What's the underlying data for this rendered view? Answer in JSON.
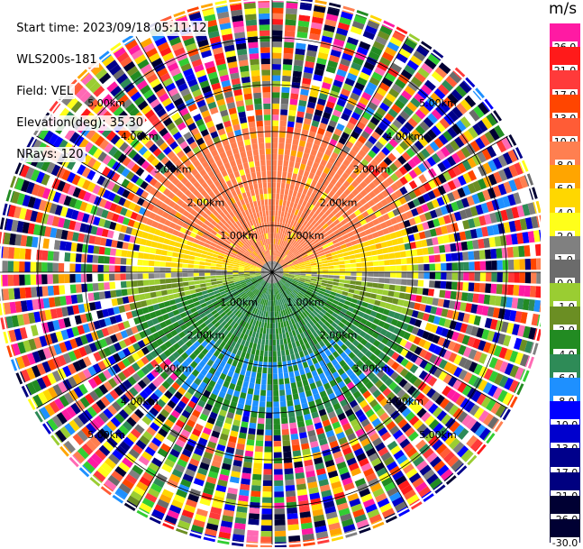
{
  "header": {
    "start_time": "Start time: 2023/09/18 05:11:12",
    "instrument": "WLS200s-181",
    "field": "Field: VEL",
    "elevation": "Elevation(deg): 35.30",
    "nrays": "NRays: 120"
  },
  "colorbar": {
    "unit": "m/s",
    "levels": [
      {
        "label": "26.0",
        "color": "#ff1aa3"
      },
      {
        "label": "21.0",
        "color": "#ff1a1a"
      },
      {
        "label": "17.0",
        "color": "#ff3a3a"
      },
      {
        "label": "13.0",
        "color": "#ff4500"
      },
      {
        "label": "10.0",
        "color": "#ff5c36"
      },
      {
        "label": "8.0",
        "color": "#ff7f50"
      },
      {
        "label": "6.0",
        "color": "#ffa500"
      },
      {
        "label": "4.0",
        "color": "#ffd700"
      },
      {
        "label": "2.0",
        "color": "#ffff1a"
      },
      {
        "label": "1.0",
        "color": "#808080"
      },
      {
        "label": "0.0",
        "color": "#6b6b6b"
      },
      {
        "label": "-1.0",
        "color": "#9acd32"
      },
      {
        "label": "-2.0",
        "color": "#6b8e23"
      },
      {
        "label": "-4.0",
        "color": "#228b22"
      },
      {
        "label": "-6.0",
        "color": "#2e8b57"
      },
      {
        "label": "-8.0",
        "color": "#1e90ff"
      },
      {
        "label": "-10.0",
        "color": "#0000ff"
      },
      {
        "label": "-13.0",
        "color": "#0000cd"
      },
      {
        "label": "-17.0",
        "color": "#00008b"
      },
      {
        "label": "-21.0",
        "color": "#000080"
      },
      {
        "label": "-26.0",
        "color": "#000033"
      },
      {
        "label": "-30.0",
        "color": "#000033"
      }
    ]
  },
  "chart_data": {
    "type": "heatmap",
    "plot": "radial velocity PPI",
    "field": "VEL",
    "unit": "m/s",
    "num_rays": 120,
    "range_rings_km": [
      1.0,
      2.0,
      3.0,
      4.0,
      5.0
    ],
    "ring_labels": [
      "1.00km",
      "2.00km",
      "3.00km",
      "4.00km",
      "5.00km"
    ],
    "max_range_km": 5.8,
    "velocity_pattern": {
      "north_sector_near_range": 10.0,
      "east_west_axis": 0.0,
      "south_sector_near_range": -8.0,
      "far_range": "noise"
    }
  }
}
